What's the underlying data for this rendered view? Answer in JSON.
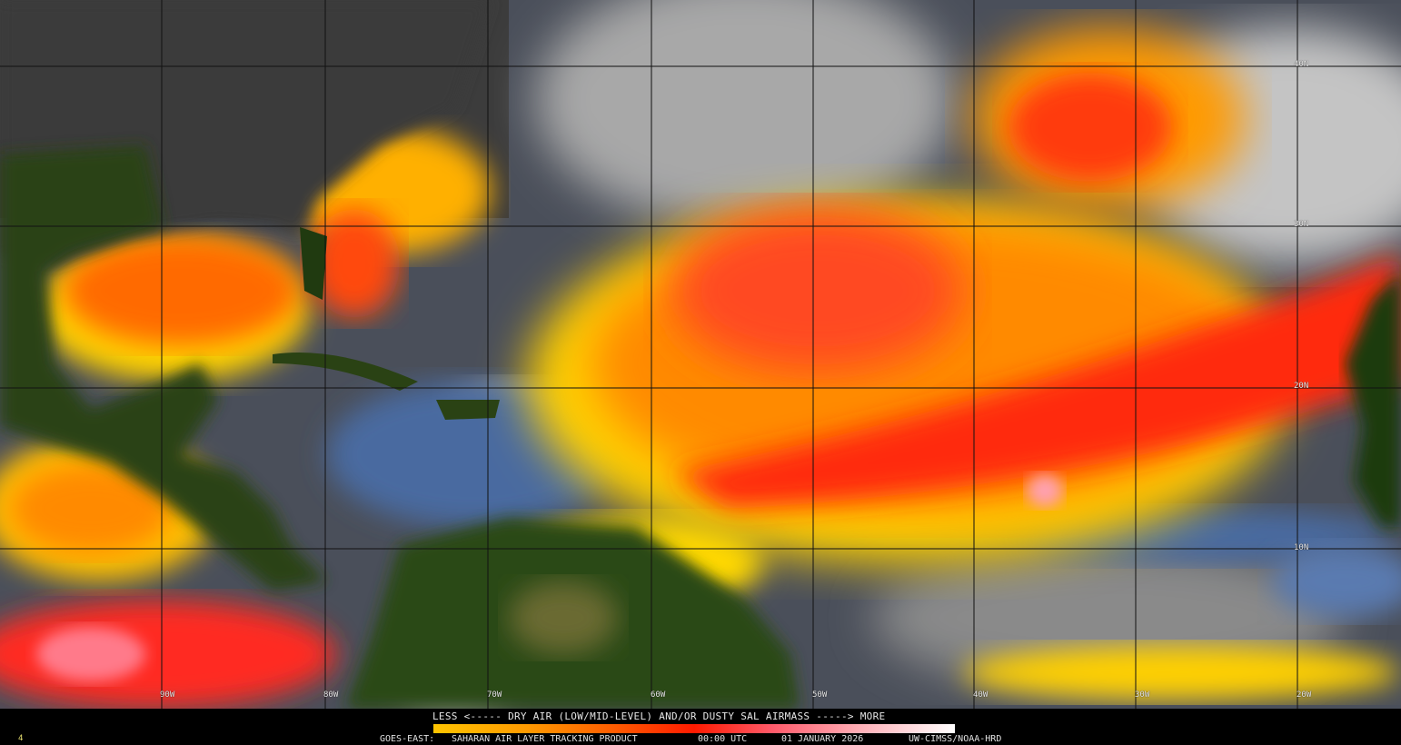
{
  "product": {
    "legend_title": "LESS <----- DRY AIR (LOW/MID-LEVEL) AND/OR DUSTY SAL AIRMASS -----> MORE",
    "legend_colors": [
      "#ffc400",
      "#ff9a00",
      "#ff5a00",
      "#ff1a00",
      "#ff5a6a",
      "#ffb0b8",
      "#ffffff"
    ],
    "satellite": "GOES-EAST:",
    "product_name": "SAHARAN AIR LAYER TRACKING PRODUCT",
    "time": "00:00 UTC",
    "date": "01 JANUARY 2026",
    "credit": "UW-CIMSS/NOAA-HRD",
    "corner_mark": "4"
  },
  "grid": {
    "latitude_labels": [
      "40N",
      "30N",
      "20N",
      "10N"
    ],
    "longitude_labels": [
      "90W",
      "80W",
      "70W",
      "60W",
      "50W",
      "40W",
      "30W",
      "20W"
    ]
  }
}
